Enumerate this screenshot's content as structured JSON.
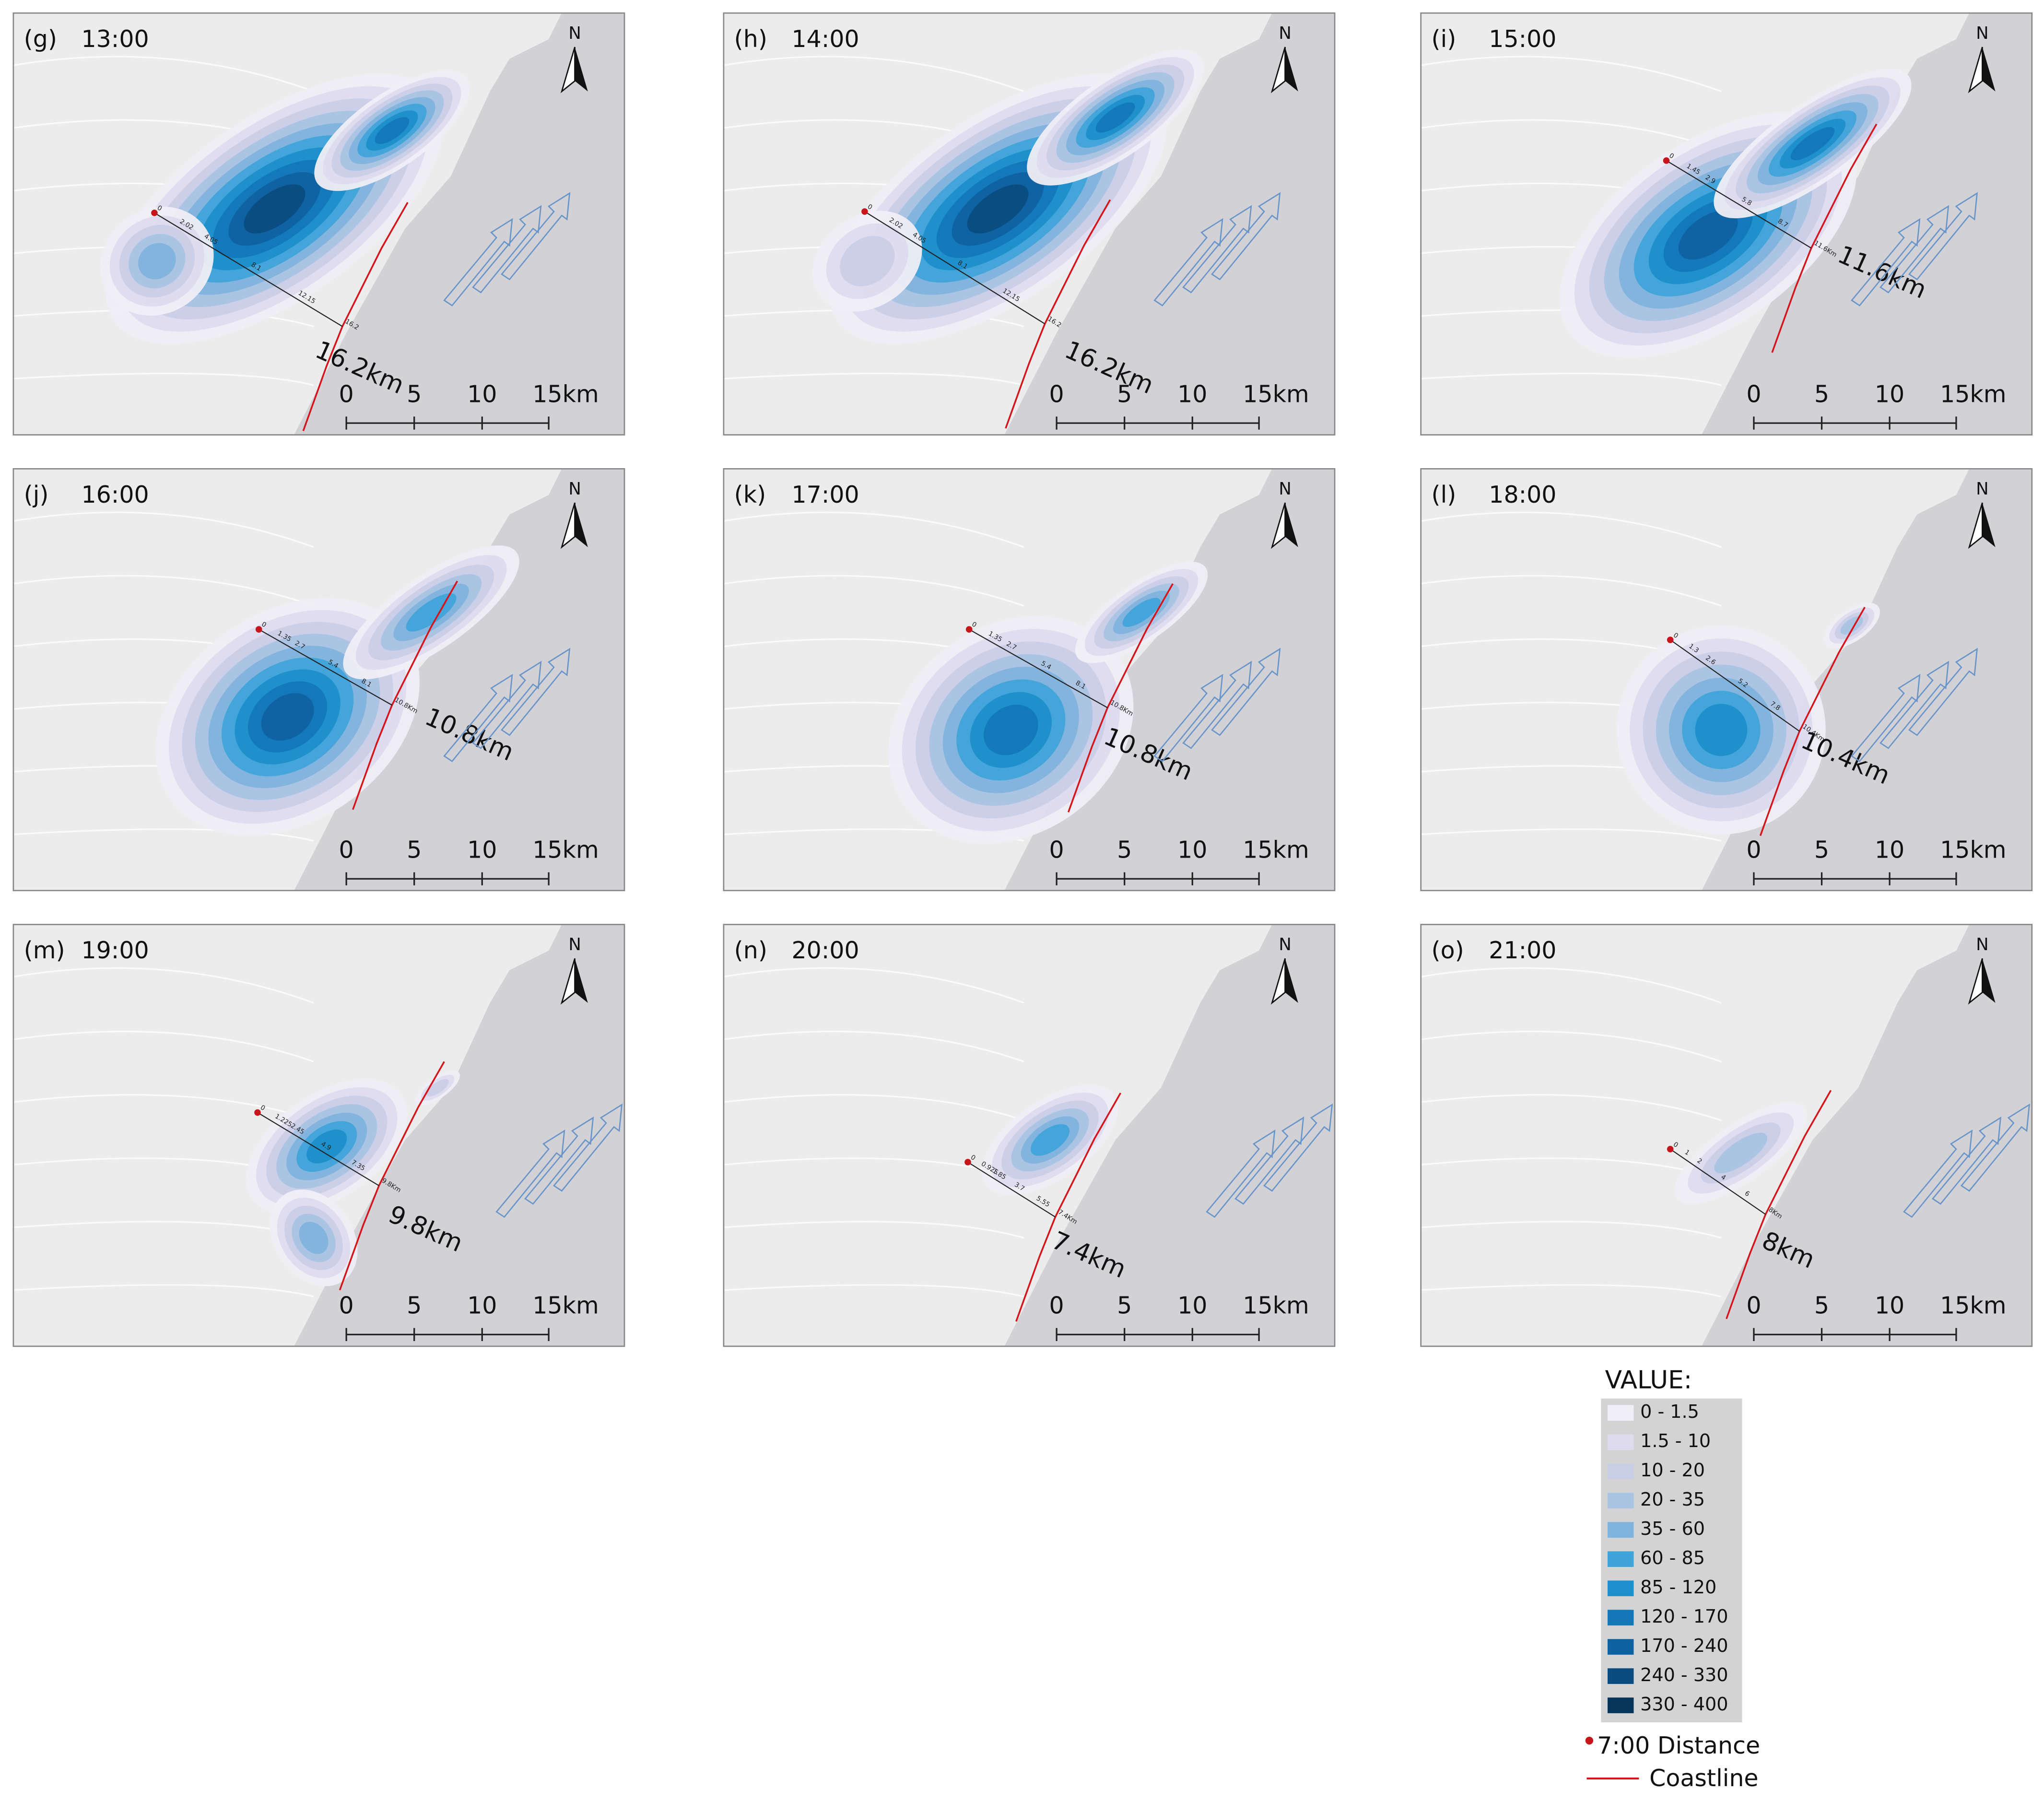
{
  "panels": [
    {
      "label": "(g)",
      "time": "13:00",
      "distance": "16.2km",
      "ticks": [
        "0",
        "2.02",
        "4.05",
        "8.1",
        "12.15",
        "16.2"
      ]
    },
    {
      "label": "(h)",
      "time": "14:00",
      "distance": "16.2km",
      "ticks": [
        "0",
        "2.02",
        "4.05",
        "8.1",
        "12.15",
        "16.2"
      ]
    },
    {
      "label": "(i)",
      "time": "15:00",
      "distance": "11.6km",
      "ticks": [
        "0",
        "1.45",
        "2.9",
        "5.8",
        "8.7",
        "11.6Km"
      ]
    },
    {
      "label": "(j)",
      "time": "16:00",
      "distance": "10.8km",
      "ticks": [
        "0",
        "1.35",
        "2.7",
        "5.4",
        "8.1",
        "10.8Km"
      ]
    },
    {
      "label": "(k)",
      "time": "17:00",
      "distance": "10.8km",
      "ticks": [
        "0",
        "1.35",
        "2.7",
        "5.4",
        "8.1",
        "10.8Km"
      ]
    },
    {
      "label": "(l)",
      "time": "18:00",
      "distance": "10.4km",
      "ticks": [
        "0",
        "1.3",
        "2.6",
        "5.2",
        "7.8",
        "10.4Km"
      ]
    },
    {
      "label": "(m)",
      "time": "19:00",
      "distance": "9.8km",
      "ticks": [
        "0",
        "1.225",
        "2.45",
        "4.9",
        "7.35",
        "9.8Km"
      ]
    },
    {
      "label": "(n)",
      "time": "20:00",
      "distance": "7.4km",
      "ticks": [
        "0",
        "0.925",
        "1.85",
        "3.7",
        "5.55",
        "7.4Km"
      ]
    },
    {
      "label": "(o)",
      "time": "21:00",
      "distance": "8km",
      "ticks": [
        "0",
        "1",
        "2",
        "4",
        "6",
        "8Km"
      ]
    }
  ],
  "north": "N",
  "scale_bar": [
    "0",
    "5",
    "10",
    "15km"
  ],
  "legend": {
    "title": "VALUE:",
    "classes": [
      {
        "label": "0 - 1.5",
        "color": "#f0eef6"
      },
      {
        "label": "1.5 - 10",
        "color": "#dedbef"
      },
      {
        "label": "10 - 20",
        "color": "#c9cee7"
      },
      {
        "label": "20 - 35",
        "color": "#a9c3e3"
      },
      {
        "label": "35 - 60",
        "color": "#7fb3dc"
      },
      {
        "label": "60 - 85",
        "color": "#3fa4d8"
      },
      {
        "label": "85 - 120",
        "color": "#1c8fcc"
      },
      {
        "label": "120 - 170",
        "color": "#1478b8"
      },
      {
        "label": "170 - 240",
        "color": "#0f62a0"
      },
      {
        "label": "240 - 330",
        "color": "#0b4c80"
      },
      {
        "label": "330 - 400",
        "color": "#06355c"
      }
    ],
    "distance": "7:00 Distance",
    "coastline": "Coastline"
  }
}
